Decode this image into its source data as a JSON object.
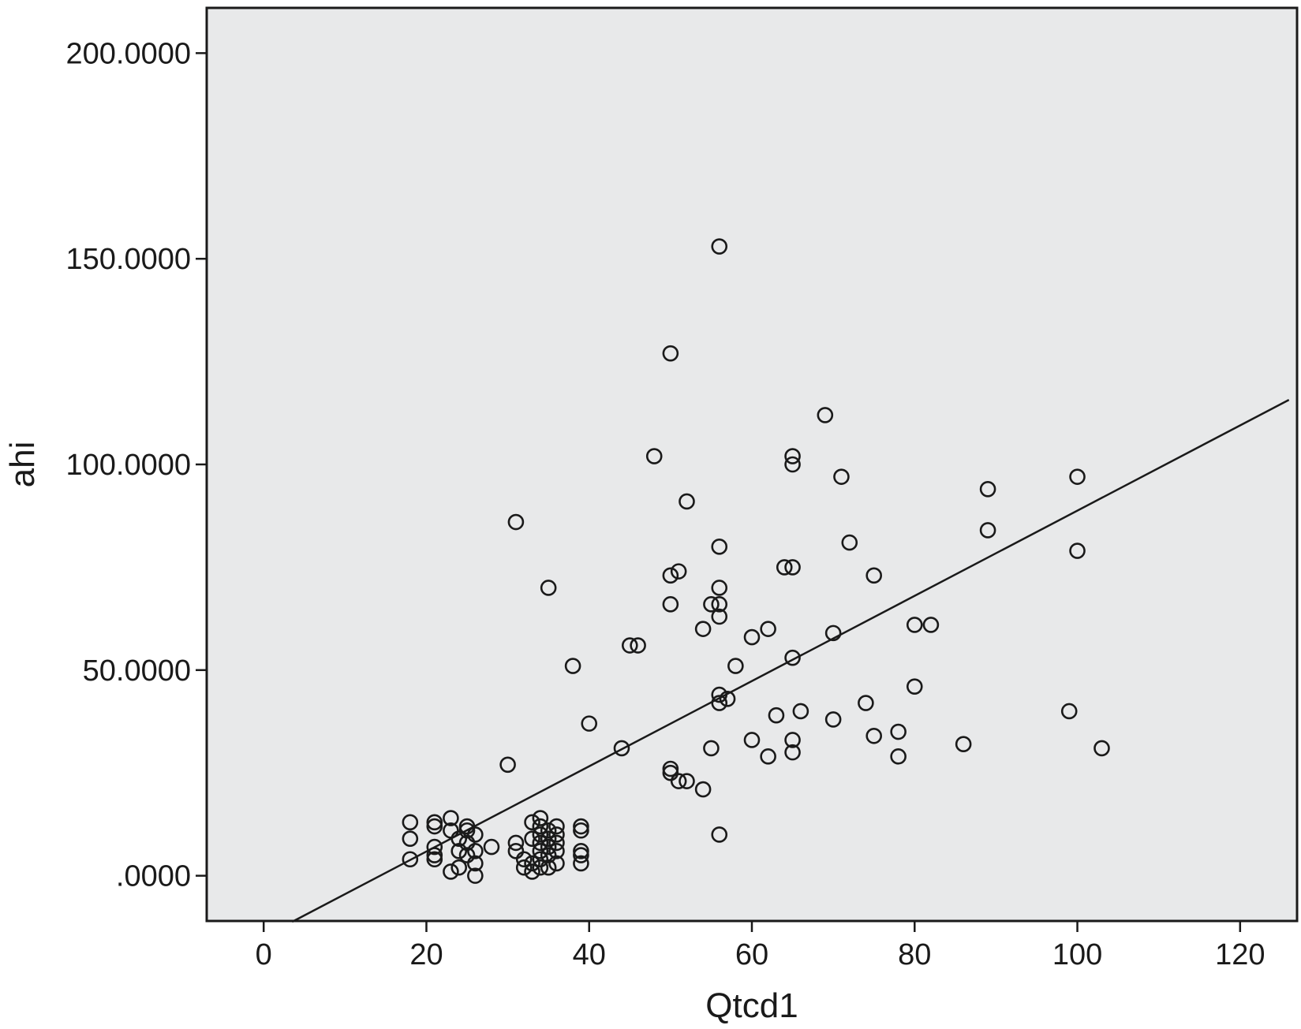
{
  "chart_data": {
    "type": "scatter",
    "title": "",
    "xlabel": "Qtcd1",
    "ylabel": "ahi",
    "xlim": [
      -7,
      127
    ],
    "ylim": [
      -11,
      211
    ],
    "grid": false,
    "plot_background": "#e8e9ea",
    "point_color": "#1a1a1a",
    "line_color": "#1a1a1a",
    "x_ticks": [
      {
        "value": 0,
        "label": "0"
      },
      {
        "value": 20,
        "label": "20"
      },
      {
        "value": 40,
        "label": "40"
      },
      {
        "value": 60,
        "label": "60"
      },
      {
        "value": 80,
        "label": "80"
      },
      {
        "value": 100,
        "label": "100"
      },
      {
        "value": 120,
        "label": "120"
      }
    ],
    "y_ticks": [
      {
        "value": 0,
        "label": ".0000"
      },
      {
        "value": 50,
        "label": "50.0000"
      },
      {
        "value": 100,
        "label": "100.0000"
      },
      {
        "value": 150,
        "label": "150.0000"
      },
      {
        "value": 200,
        "label": "200.0000"
      }
    ],
    "fit_line": {
      "x": [
        3.5,
        126
      ],
      "y": [
        -11.2,
        115.7
      ]
    },
    "points": [
      [
        56,
        153
      ],
      [
        50,
        127
      ],
      [
        69,
        112
      ],
      [
        48,
        102
      ],
      [
        65,
        102
      ],
      [
        65,
        100
      ],
      [
        71,
        97
      ],
      [
        100,
        97
      ],
      [
        89,
        94
      ],
      [
        52,
        91
      ],
      [
        31,
        86
      ],
      [
        89,
        84
      ],
      [
        72,
        81
      ],
      [
        56,
        80
      ],
      [
        100,
        79
      ],
      [
        64,
        75
      ],
      [
        65,
        75
      ],
      [
        51,
        74
      ],
      [
        50,
        73
      ],
      [
        75,
        73
      ],
      [
        35,
        70
      ],
      [
        56,
        70
      ],
      [
        55,
        66
      ],
      [
        50,
        66
      ],
      [
        56,
        66
      ],
      [
        56,
        63
      ],
      [
        62,
        60
      ],
      [
        80,
        61
      ],
      [
        82,
        61
      ],
      [
        54,
        60
      ],
      [
        60,
        58
      ],
      [
        70,
        59
      ],
      [
        45,
        56
      ],
      [
        46,
        56
      ],
      [
        65,
        53
      ],
      [
        38,
        51
      ],
      [
        58,
        51
      ],
      [
        80,
        46
      ],
      [
        56,
        44
      ],
      [
        57,
        43
      ],
      [
        56,
        42
      ],
      [
        74,
        42
      ],
      [
        63,
        39
      ],
      [
        66,
        40
      ],
      [
        99,
        40
      ],
      [
        40,
        37
      ],
      [
        70,
        38
      ],
      [
        75,
        34
      ],
      [
        78,
        35
      ],
      [
        60,
        33
      ],
      [
        65,
        33
      ],
      [
        86,
        32
      ],
      [
        103,
        31
      ],
      [
        44,
        31
      ],
      [
        55,
        31
      ],
      [
        62,
        29
      ],
      [
        65,
        30
      ],
      [
        78,
        29
      ],
      [
        30,
        27
      ],
      [
        50,
        26
      ],
      [
        50,
        25
      ],
      [
        51,
        23
      ],
      [
        52,
        23
      ],
      [
        54,
        21
      ],
      [
        56,
        10
      ],
      [
        18,
        13
      ],
      [
        18,
        9
      ],
      [
        18,
        4
      ],
      [
        21,
        13
      ],
      [
        21,
        12
      ],
      [
        21,
        7
      ],
      [
        21,
        5
      ],
      [
        21,
        4
      ],
      [
        23,
        14
      ],
      [
        23,
        11
      ],
      [
        23,
        1
      ],
      [
        24,
        9
      ],
      [
        24,
        6
      ],
      [
        24,
        2
      ],
      [
        25,
        12
      ],
      [
        25,
        11
      ],
      [
        25,
        8
      ],
      [
        25,
        5
      ],
      [
        26,
        10
      ],
      [
        26,
        6
      ],
      [
        26,
        3
      ],
      [
        26,
        0
      ],
      [
        28,
        7
      ],
      [
        31,
        8
      ],
      [
        31,
        6
      ],
      [
        32,
        2
      ],
      [
        32,
        4
      ],
      [
        33,
        13
      ],
      [
        33,
        9
      ],
      [
        33,
        3
      ],
      [
        33,
        1
      ],
      [
        34,
        14
      ],
      [
        34,
        12
      ],
      [
        34,
        10
      ],
      [
        34,
        8
      ],
      [
        34,
        6
      ],
      [
        34,
        4
      ],
      [
        34,
        2
      ],
      [
        35,
        11
      ],
      [
        35,
        9
      ],
      [
        35,
        7
      ],
      [
        35,
        5
      ],
      [
        35,
        2
      ],
      [
        36,
        12
      ],
      [
        36,
        10
      ],
      [
        36,
        8
      ],
      [
        36,
        6
      ],
      [
        36,
        3
      ],
      [
        39,
        12
      ],
      [
        39,
        11
      ],
      [
        39,
        6
      ],
      [
        39,
        5
      ],
      [
        39,
        3
      ]
    ]
  }
}
